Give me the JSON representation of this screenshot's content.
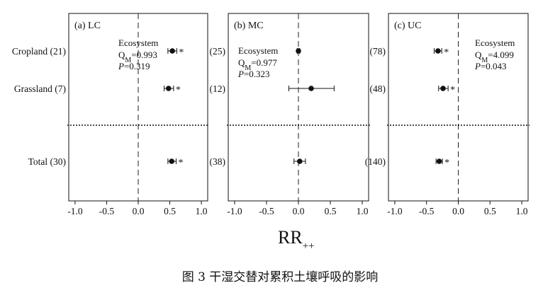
{
  "caption": "图 3 干湿交替对累积土壤呼吸的影响",
  "x_axis_label": {
    "main": "RR",
    "sub": "++"
  },
  "rows": [
    "Cropland",
    "Grassland",
    "Total"
  ],
  "chart_data": [
    {
      "type": "forest",
      "title": "(a) LC",
      "xlim": [
        -1.1,
        1.1
      ],
      "x_ticks": [
        -1.0,
        -0.5,
        0.0,
        0.5,
        1.0
      ],
      "x_tick_labels": [
        "-1.0",
        "-0.5",
        "0.0",
        "0.5",
        "1.0"
      ],
      "row_labels": [
        "Cropland (21)",
        "Grassland (7)",
        "Total (30)"
      ],
      "points": [
        {
          "category": "Cropland",
          "n": 21,
          "value": 0.54,
          "ci_low": 0.47,
          "ci_high": 0.61,
          "sig": "*"
        },
        {
          "category": "Grassland",
          "n": 7,
          "value": 0.48,
          "ci_low": 0.41,
          "ci_high": 0.56,
          "sig": "*"
        },
        {
          "category": "Total",
          "n": 30,
          "value": 0.53,
          "ci_low": 0.47,
          "ci_high": 0.6,
          "sig": "*"
        }
      ],
      "stats": {
        "label": "Ecosystem",
        "qm": "=0.993",
        "p": "=0.319"
      }
    },
    {
      "type": "forest",
      "title": "(b) MC",
      "xlim": [
        -1.1,
        1.1
      ],
      "x_ticks": [
        -1.0,
        -0.5,
        0.0,
        0.5,
        1.0
      ],
      "x_tick_labels": [
        "-1.0",
        "-0.5",
        "0.0",
        "0.5",
        "1.0"
      ],
      "row_labels": [
        "(25)",
        "(12)",
        "(38)"
      ],
      "points": [
        {
          "category": "Cropland",
          "n": 25,
          "value": 0.0,
          "ci_low": -0.02,
          "ci_high": 0.02,
          "sig": ""
        },
        {
          "category": "Grassland",
          "n": 12,
          "value": 0.2,
          "ci_low": -0.15,
          "ci_high": 0.56,
          "sig": ""
        },
        {
          "category": "Total",
          "n": 38,
          "value": 0.02,
          "ci_low": -0.07,
          "ci_high": 0.11,
          "sig": ""
        }
      ],
      "stats": {
        "label": "Ecosystem",
        "qm": "=0.977",
        "p": "=0.323"
      }
    },
    {
      "type": "forest",
      "title": "(c) UC",
      "xlim": [
        -1.1,
        1.1
      ],
      "x_ticks": [
        -1.0,
        -0.5,
        0.0,
        0.5,
        1.0
      ],
      "x_tick_labels": [
        "-1.0",
        "-0.5",
        "0.0",
        "0.5",
        "1.0"
      ],
      "row_labels": [
        "(78)",
        "(48)",
        "(140)"
      ],
      "points": [
        {
          "category": "Cropland",
          "n": 78,
          "value": -0.32,
          "ci_low": -0.38,
          "ci_high": -0.26,
          "sig": "*"
        },
        {
          "category": "Grassland",
          "n": 48,
          "value": -0.24,
          "ci_low": -0.31,
          "ci_high": -0.16,
          "sig": "*"
        },
        {
          "category": "Total",
          "n": 140,
          "value": -0.3,
          "ci_low": -0.35,
          "ci_high": -0.25,
          "sig": "*"
        }
      ],
      "stats": {
        "label": "Ecosystem",
        "qm": "=4.099",
        "p": "=0.043"
      }
    }
  ]
}
